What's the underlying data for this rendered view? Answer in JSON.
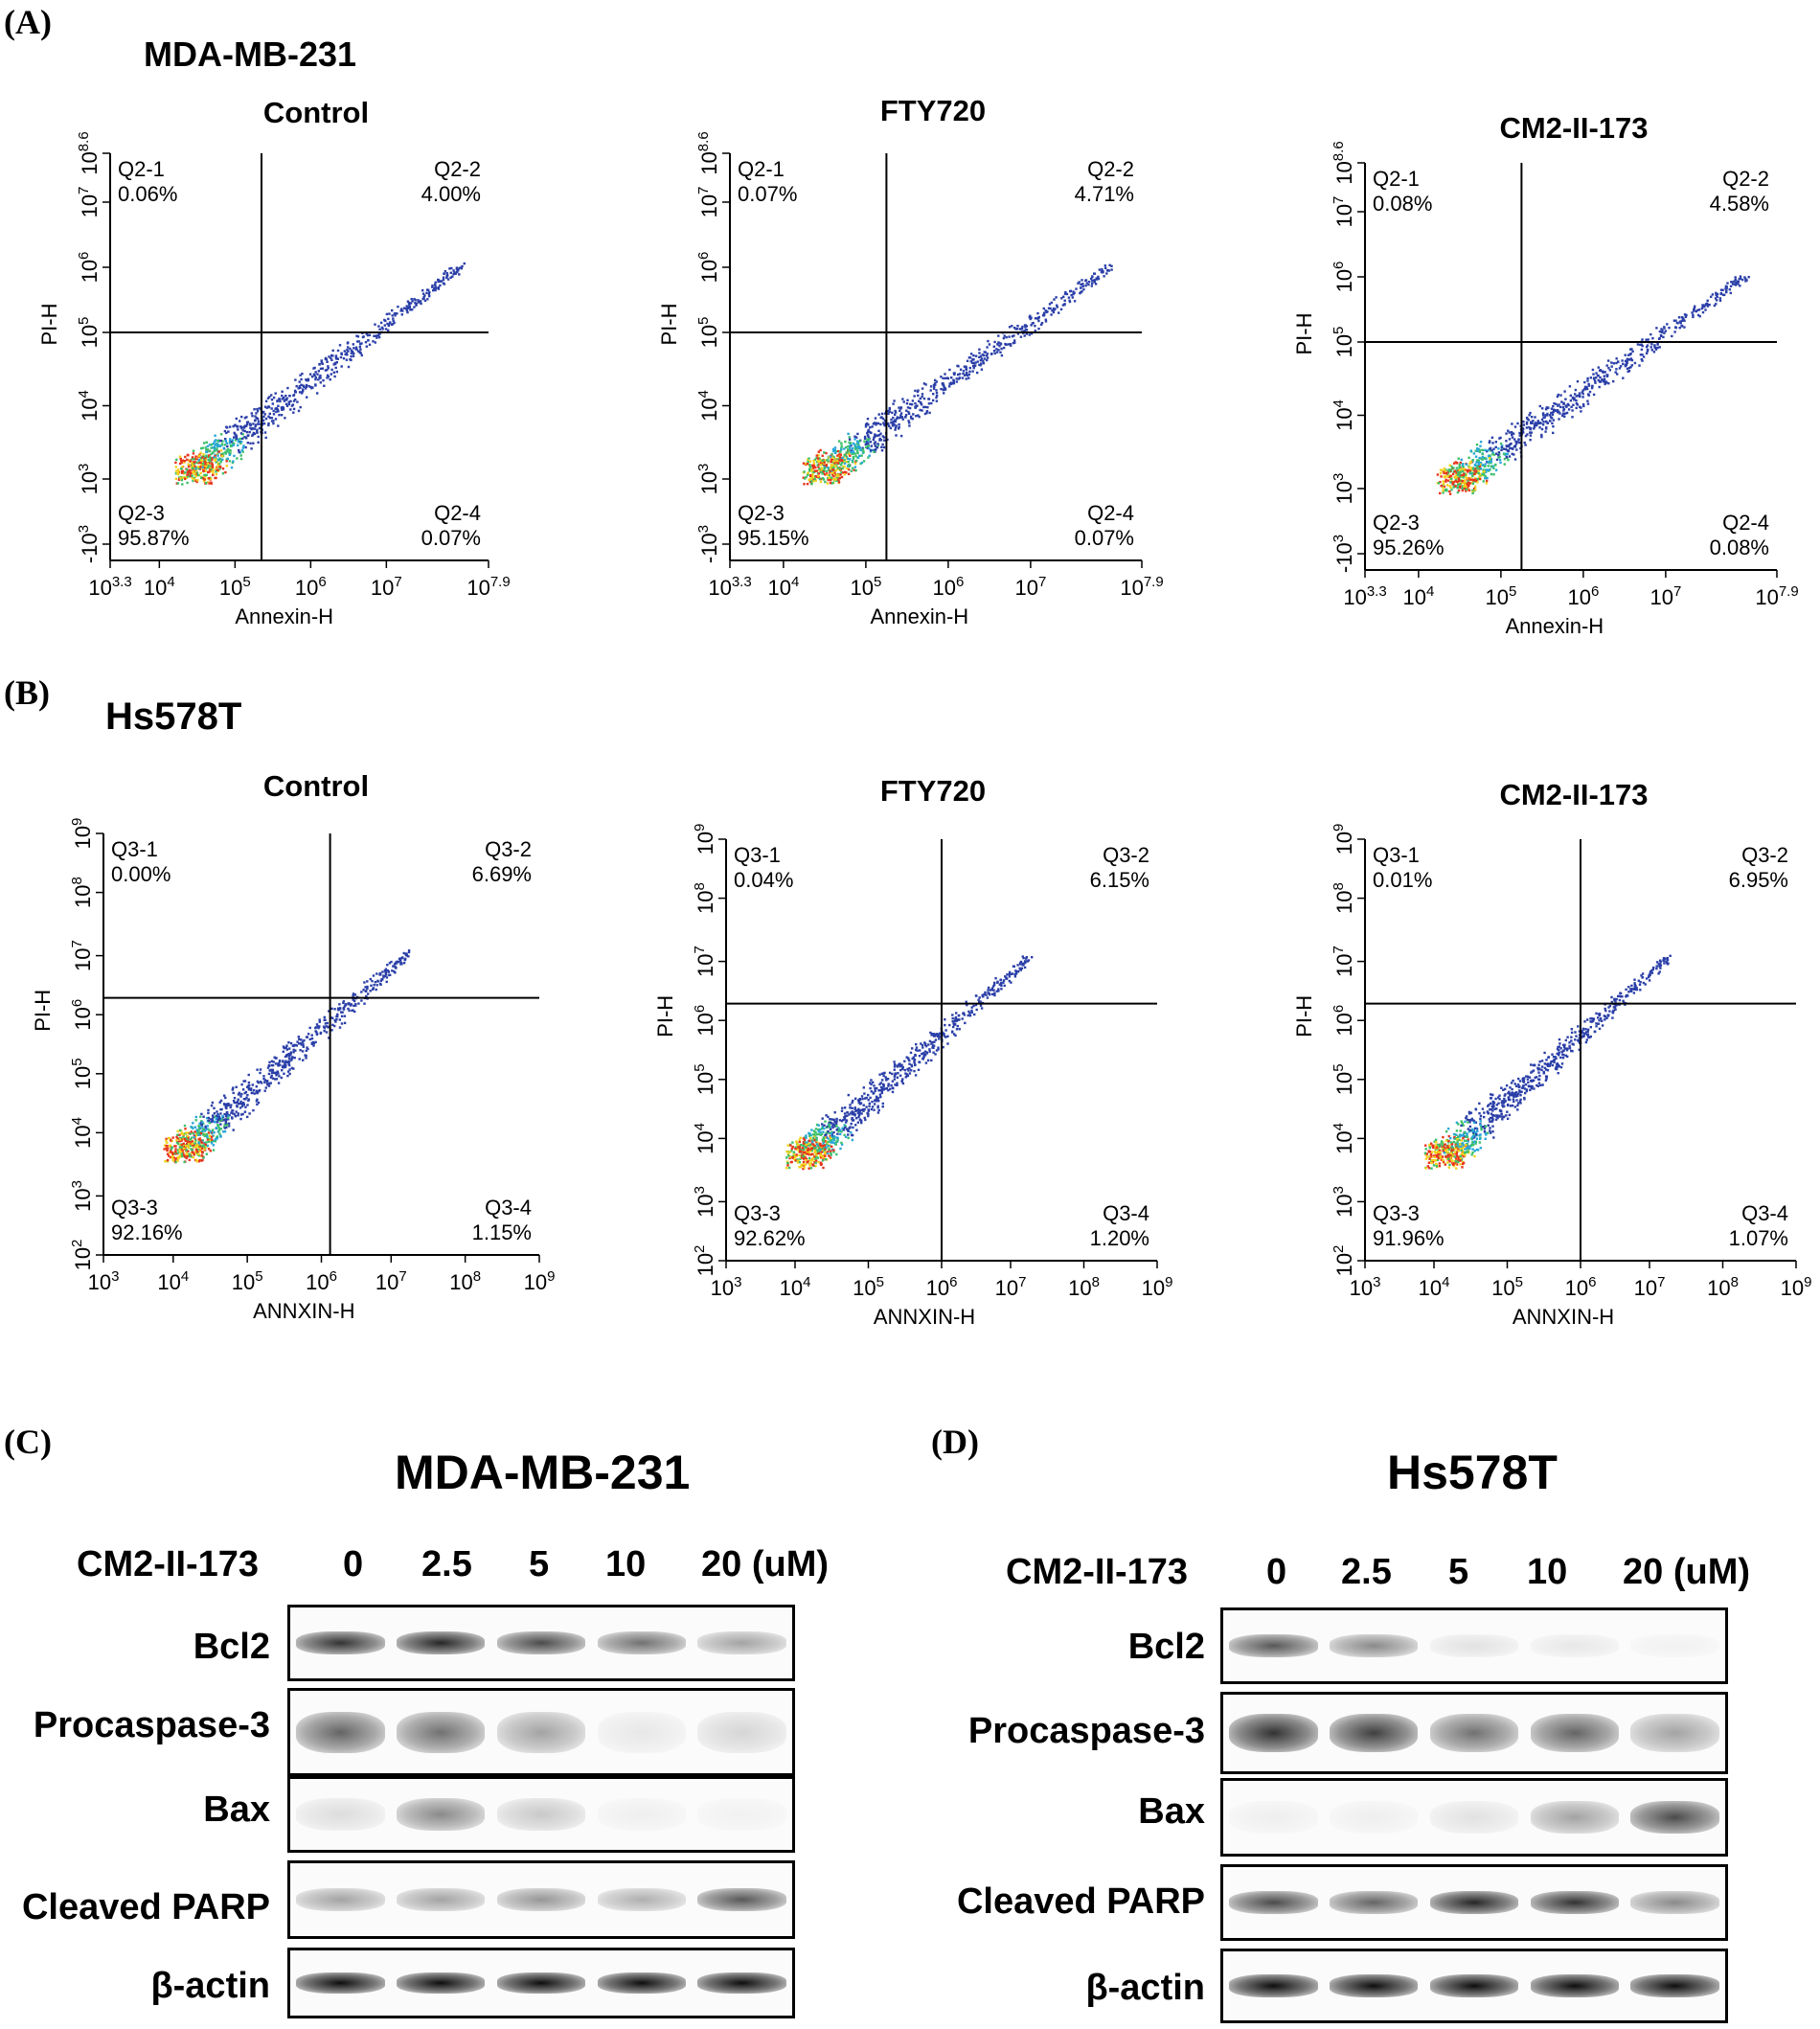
{
  "panel_a": {
    "letter": "(A)",
    "cell_line": "MDA-MB-231",
    "x_label": "Annexin-H",
    "y_label": "PI-H",
    "x_ticks": [
      "10^3.3",
      "10^4",
      "10^5",
      "10^6",
      "10^7",
      "10^7.9"
    ],
    "y_ticks": [
      "-10^3",
      "10^3",
      "10^4",
      "10^5",
      "10^6",
      "10^7",
      "10^8.6"
    ],
    "plots": [
      {
        "title": "Control",
        "q1": "Q2-1",
        "q1v": "0.06%",
        "q2": "Q2-2",
        "q2v": "4.00%",
        "q3": "Q2-3",
        "q3v": "95.87%",
        "q4": "Q2-4",
        "q4v": "0.07%"
      },
      {
        "title": "FTY720",
        "q1": "Q2-1",
        "q1v": "0.07%",
        "q2": "Q2-2",
        "q2v": "4.71%",
        "q3": "Q2-3",
        "q3v": "95.15%",
        "q4": "Q2-4",
        "q4v": "0.07%"
      },
      {
        "title": "CM2-II-173",
        "q1": "Q2-1",
        "q1v": "0.08%",
        "q2": "Q2-2",
        "q2v": "4.58%",
        "q3": "Q2-3",
        "q3v": "95.26%",
        "q4": "Q2-4",
        "q4v": "0.08%"
      }
    ]
  },
  "panel_b": {
    "letter": "(B)",
    "cell_line": "Hs578T",
    "x_label": "ANNXIN-H",
    "y_label": "PI-H",
    "x_ticks": [
      "10^3",
      "10^4",
      "10^5",
      "10^6",
      "10^7",
      "10^8",
      "10^9"
    ],
    "y_ticks": [
      "10^2",
      "10^3",
      "10^4",
      "10^5",
      "10^6",
      "10^7",
      "10^8",
      "10^9"
    ],
    "plots": [
      {
        "title": "Control",
        "q1": "Q3-1",
        "q1v": "0.00%",
        "q2": "Q3-2",
        "q2v": "6.69%",
        "q3": "Q3-3",
        "q3v": "92.16%",
        "q4": "Q3-4",
        "q4v": "1.15%"
      },
      {
        "title": "FTY720",
        "q1": "Q3-1",
        "q1v": "0.04%",
        "q2": "Q3-2",
        "q2v": "6.15%",
        "q3": "Q3-3",
        "q3v": "92.62%",
        "q4": "Q3-4",
        "q4v": "1.20%"
      },
      {
        "title": "CM2-II-173",
        "q1": "Q3-1",
        "q1v": "0.01%",
        "q2": "Q3-2",
        "q2v": "6.95%",
        "q3": "Q3-3",
        "q3v": "91.96%",
        "q4": "Q3-4",
        "q4v": "1.07%"
      }
    ]
  },
  "panel_c": {
    "letter": "(C)",
    "cell_line": "MDA-MB-231",
    "treatment": "CM2-II-173",
    "doses": [
      "0",
      "2.5",
      "5",
      "10",
      "20 (uM)"
    ],
    "rows": [
      "Bcl2",
      "Procaspase-3",
      "Bax",
      "Cleaved PARP",
      "β-actin"
    ],
    "band_intensity": [
      [
        0.8,
        0.85,
        0.7,
        0.55,
        0.35
      ],
      [
        0.6,
        0.55,
        0.35,
        0.08,
        0.15
      ],
      [
        0.12,
        0.45,
        0.2,
        0.05,
        0.03
      ],
      [
        0.35,
        0.35,
        0.4,
        0.3,
        0.65
      ],
      [
        0.95,
        0.95,
        0.95,
        0.95,
        0.95
      ]
    ]
  },
  "panel_d": {
    "letter": "(D)",
    "cell_line": "Hs578T",
    "treatment": "CM2-II-173",
    "doses": [
      "0",
      "2.5",
      "5",
      "10",
      "20 (uM)"
    ],
    "rows": [
      "Bcl2",
      "Procaspase-3",
      "Bax",
      "Cleaved PARP",
      "β-actin"
    ],
    "band_intensity": [
      [
        0.65,
        0.45,
        0.1,
        0.08,
        0.0
      ],
      [
        0.8,
        0.75,
        0.55,
        0.6,
        0.35
      ],
      [
        0.05,
        0.05,
        0.1,
        0.35,
        0.7
      ],
      [
        0.7,
        0.6,
        0.85,
        0.8,
        0.45
      ],
      [
        0.95,
        0.95,
        0.95,
        0.95,
        0.95
      ]
    ]
  }
}
